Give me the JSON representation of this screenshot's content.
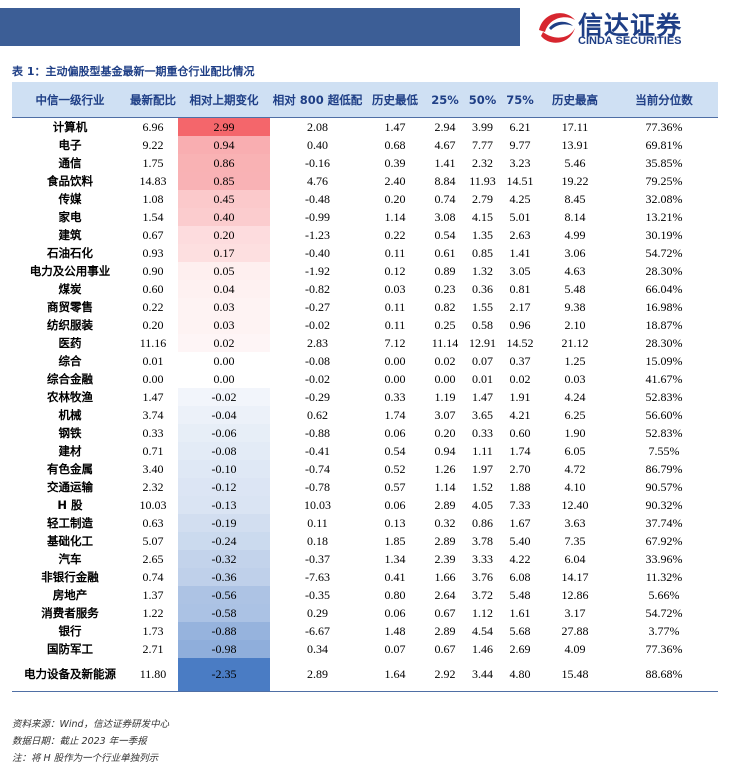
{
  "header": {
    "brand": "信达证券",
    "brand_en": "CINDA SECURITIES"
  },
  "table": {
    "title": "表 1：主动偏股型基金最新一期重仓行业配比情况",
    "columns": [
      "中信一级行业",
      "最新配比",
      "相对上期变化",
      "相对 800 超低配",
      "历史最低",
      "25%",
      "50%",
      "75%",
      "历史最高",
      "当前分位数"
    ],
    "rows": [
      [
        "计算机",
        "6.96",
        "2.99",
        "2.08",
        "1.47",
        "2.94",
        "3.99",
        "6.21",
        "17.11",
        "77.36%"
      ],
      [
        "电子",
        "9.22",
        "0.94",
        "0.40",
        "0.68",
        "4.67",
        "7.77",
        "9.77",
        "13.91",
        "69.81%"
      ],
      [
        "通信",
        "1.75",
        "0.86",
        "-0.16",
        "0.39",
        "1.41",
        "2.32",
        "3.23",
        "5.46",
        "35.85%"
      ],
      [
        "食品饮料",
        "14.83",
        "0.85",
        "4.76",
        "2.40",
        "8.84",
        "11.93",
        "14.51",
        "19.22",
        "79.25%"
      ],
      [
        "传媒",
        "1.08",
        "0.45",
        "-0.48",
        "0.20",
        "0.74",
        "2.79",
        "4.25",
        "8.45",
        "32.08%"
      ],
      [
        "家电",
        "1.54",
        "0.40",
        "-0.99",
        "1.14",
        "3.08",
        "4.15",
        "5.01",
        "8.14",
        "13.21%"
      ],
      [
        "建筑",
        "0.67",
        "0.20",
        "-1.23",
        "0.22",
        "0.54",
        "1.35",
        "2.63",
        "4.99",
        "30.19%"
      ],
      [
        "石油石化",
        "0.93",
        "0.17",
        "-0.40",
        "0.11",
        "0.61",
        "0.85",
        "1.41",
        "3.06",
        "54.72%"
      ],
      [
        "电力及公用事业",
        "0.90",
        "0.05",
        "-1.92",
        "0.12",
        "0.89",
        "1.32",
        "3.05",
        "4.63",
        "28.30%"
      ],
      [
        "煤炭",
        "0.60",
        "0.04",
        "-0.82",
        "0.03",
        "0.23",
        "0.36",
        "0.81",
        "5.48",
        "66.04%"
      ],
      [
        "商贸零售",
        "0.22",
        "0.03",
        "-0.27",
        "0.11",
        "0.82",
        "1.55",
        "2.17",
        "9.38",
        "16.98%"
      ],
      [
        "纺织服装",
        "0.20",
        "0.03",
        "-0.02",
        "0.11",
        "0.25",
        "0.58",
        "0.96",
        "2.10",
        "18.87%"
      ],
      [
        "医药",
        "11.16",
        "0.02",
        "2.83",
        "7.12",
        "11.14",
        "12.91",
        "14.52",
        "21.12",
        "28.30%"
      ],
      [
        "综合",
        "0.01",
        "0.00",
        "-0.08",
        "0.00",
        "0.02",
        "0.07",
        "0.37",
        "1.25",
        "15.09%"
      ],
      [
        "综合金融",
        "0.00",
        "0.00",
        "-0.02",
        "0.00",
        "0.00",
        "0.01",
        "0.02",
        "0.03",
        "41.67%"
      ],
      [
        "农林牧渔",
        "1.47",
        "-0.02",
        "-0.29",
        "0.33",
        "1.19",
        "1.47",
        "1.91",
        "4.24",
        "52.83%"
      ],
      [
        "机械",
        "3.74",
        "-0.04",
        "0.62",
        "1.74",
        "3.07",
        "3.65",
        "4.21",
        "6.25",
        "56.60%"
      ],
      [
        "钢铁",
        "0.33",
        "-0.06",
        "-0.88",
        "0.06",
        "0.20",
        "0.33",
        "0.60",
        "1.90",
        "52.83%"
      ],
      [
        "建材",
        "0.71",
        "-0.08",
        "-0.41",
        "0.54",
        "0.94",
        "1.11",
        "1.74",
        "6.05",
        "7.55%"
      ],
      [
        "有色金属",
        "3.40",
        "-0.10",
        "-0.74",
        "0.52",
        "1.26",
        "1.97",
        "2.70",
        "4.72",
        "86.79%"
      ],
      [
        "交通运输",
        "2.32",
        "-0.12",
        "-0.78",
        "0.57",
        "1.14",
        "1.52",
        "1.88",
        "4.10",
        "90.57%"
      ],
      [
        "H 股",
        "10.03",
        "-0.13",
        "10.03",
        "0.06",
        "2.89",
        "4.05",
        "7.33",
        "12.40",
        "90.32%"
      ],
      [
        "轻工制造",
        "0.63",
        "-0.19",
        "0.11",
        "0.13",
        "0.32",
        "0.86",
        "1.67",
        "3.63",
        "37.74%"
      ],
      [
        "基础化工",
        "5.07",
        "-0.24",
        "0.18",
        "1.85",
        "2.89",
        "3.78",
        "5.40",
        "7.35",
        "67.92%"
      ],
      [
        "汽车",
        "2.65",
        "-0.32",
        "-0.37",
        "1.34",
        "2.39",
        "3.33",
        "4.22",
        "6.04",
        "33.96%"
      ],
      [
        "非银行金融",
        "0.74",
        "-0.36",
        "-7.63",
        "0.41",
        "1.66",
        "3.76",
        "6.08",
        "14.17",
        "11.32%"
      ],
      [
        "房地产",
        "1.37",
        "-0.56",
        "-0.35",
        "0.80",
        "2.64",
        "3.72",
        "5.48",
        "12.86",
        "5.66%"
      ],
      [
        "消费者服务",
        "1.22",
        "-0.58",
        "0.29",
        "0.06",
        "0.67",
        "1.12",
        "1.61",
        "3.17",
        "54.72%"
      ],
      [
        "银行",
        "1.73",
        "-0.88",
        "-6.67",
        "1.48",
        "2.89",
        "4.54",
        "5.68",
        "27.88",
        "3.77%"
      ],
      [
        "国防军工",
        "2.71",
        "-0.98",
        "0.34",
        "0.07",
        "0.67",
        "1.46",
        "2.69",
        "4.09",
        "77.36%"
      ],
      [
        "电力设备及新能源",
        "11.80",
        "-2.35",
        "2.89",
        "1.64",
        "2.92",
        "3.44",
        "4.80",
        "15.48",
        "88.68%"
      ]
    ]
  },
  "notes": [
    "资料来源：Wind，信达证券研发中心",
    "数据日期：截止 2023 年一季报",
    "注：将 H 股作为一个行业单独列示"
  ]
}
